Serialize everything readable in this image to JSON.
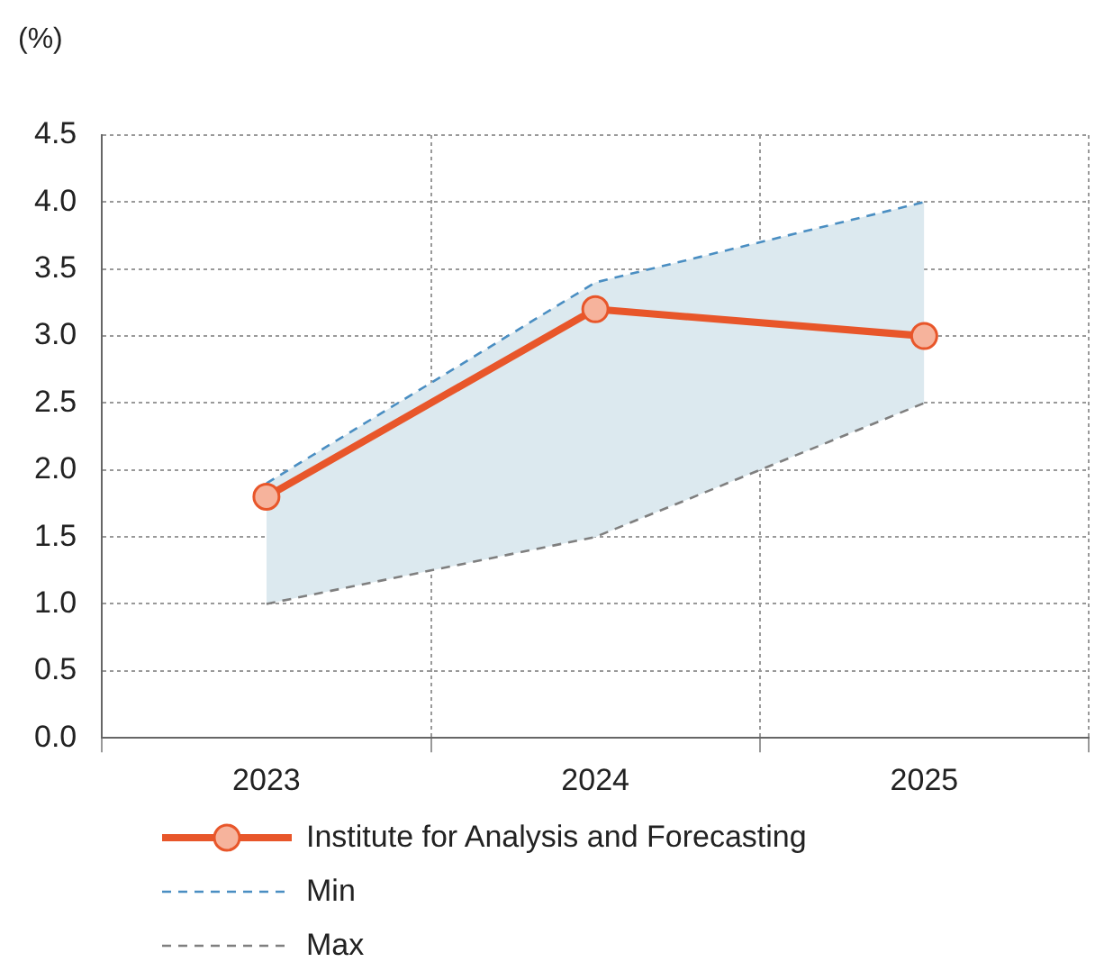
{
  "chart_data": {
    "type": "line",
    "ylabel": "(%)",
    "categories": [
      "2023",
      "2024",
      "2025"
    ],
    "series": [
      {
        "name": "Institute for Analysis and Forecasting",
        "color": "#e8562a",
        "values": [
          1.8,
          3.2,
          3.0
        ],
        "lower": [
          1.0,
          1.5,
          2.5
        ],
        "upper": [
          1.9,
          3.4,
          4.0
        ],
        "marker": "circle",
        "line_style": "solid"
      },
      {
        "name": "Min",
        "color": "#4a8ec2",
        "values": [
          1.9,
          3.4,
          4.0
        ],
        "marker": "none",
        "line_style": "dashed"
      },
      {
        "name": "Max",
        "color": "#7f7f7f",
        "values": [
          1.0,
          1.5,
          2.5
        ],
        "marker": "none",
        "line_style": "dashed"
      }
    ],
    "ylim": [
      0,
      4.5
    ],
    "yticks": [
      {
        "value": 0,
        "label": "0.0"
      },
      0.5,
      {
        "value": 1,
        "label": "1.0"
      },
      1.5,
      {
        "value": 2,
        "label": "2.0"
      },
      2.5,
      {
        "value": 3,
        "label": "3.0"
      },
      3.5,
      {
        "value": 4,
        "label": "4.0"
      },
      4.5
    ],
    "grid": true,
    "legend": "bottom"
  }
}
